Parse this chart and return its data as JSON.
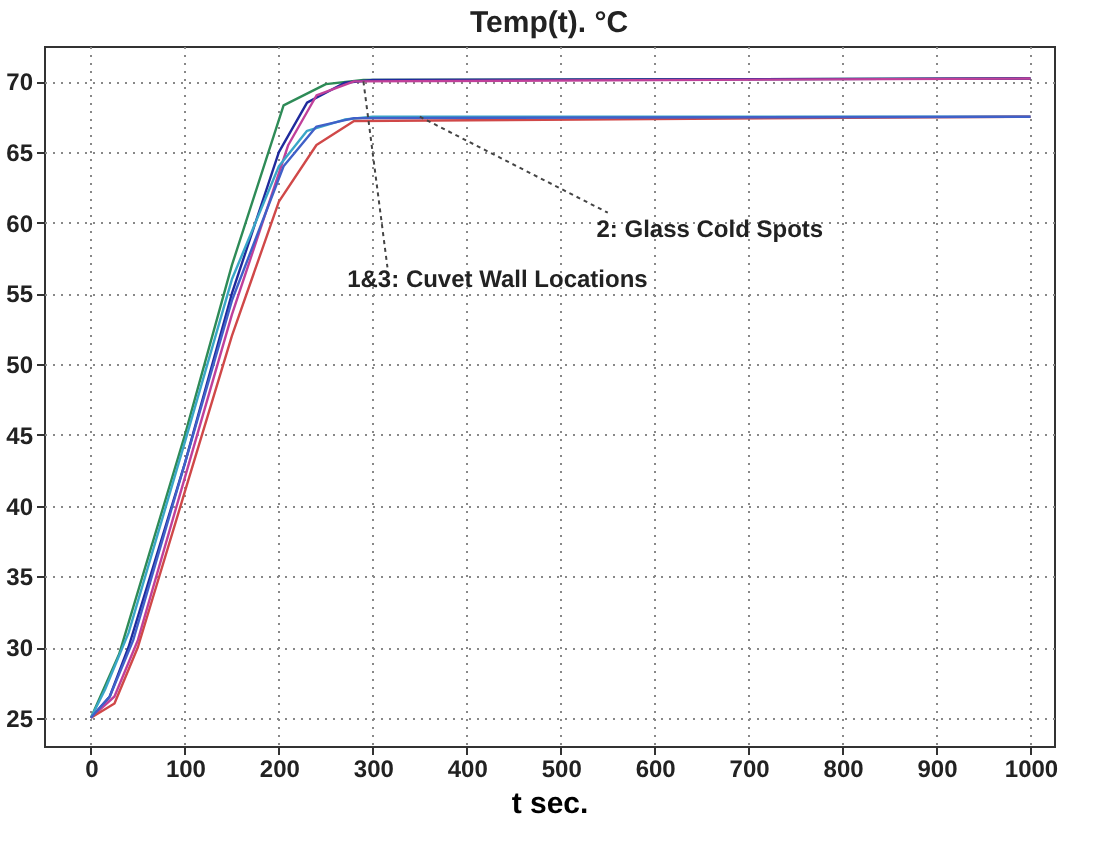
{
  "chart_data": {
    "type": "line",
    "title": "Temp(t). °C",
    "xlabel": "t sec.",
    "xlim": [
      -50,
      1025
    ],
    "ylim": [
      23,
      72.5
    ],
    "xticks": [
      0,
      100,
      200,
      300,
      400,
      500,
      600,
      700,
      800,
      900,
      1000
    ],
    "yticks": [
      25,
      30,
      35,
      40,
      45,
      50,
      55,
      60,
      65,
      70
    ],
    "grid": true,
    "line_style": "solid",
    "marker": "none",
    "series": [
      {
        "color": "#2e8b57",
        "x": [
          0,
          10,
          30,
          100,
          150,
          205,
          250,
          290,
          1000
        ],
        "values": [
          25,
          26.5,
          29.5,
          45,
          57,
          68.3,
          69.8,
          70.1,
          70.2
        ]
      },
      {
        "color": "#1f2a9c",
        "x": [
          0,
          20,
          40,
          100,
          150,
          200,
          230,
          270,
          300,
          1000
        ],
        "values": [
          25,
          26.5,
          30,
          43,
          55,
          65,
          68.5,
          69.9,
          70.1,
          70.2
        ]
      },
      {
        "color": "#c0409a",
        "x": [
          0,
          25,
          50,
          100,
          150,
          210,
          240,
          280,
          1000
        ],
        "values": [
          25,
          26.5,
          30.5,
          42,
          53.5,
          65.5,
          69,
          70,
          70.2
        ]
      },
      {
        "color": "#3aa6c8",
        "x": [
          0,
          15,
          40,
          100,
          150,
          200,
          230,
          270,
          300,
          1000
        ],
        "values": [
          25,
          27,
          31,
          44.5,
          56,
          64,
          66.5,
          67.3,
          67.5,
          67.5
        ]
      },
      {
        "color": "#d04848",
        "x": [
          0,
          25,
          50,
          100,
          150,
          200,
          240,
          280,
          1000
        ],
        "values": [
          25,
          26,
          30,
          41,
          52,
          61.5,
          65.5,
          67.2,
          67.5
        ]
      },
      {
        "color": "#4060c8",
        "x": [
          0,
          20,
          45,
          100,
          150,
          205,
          240,
          280,
          1000
        ],
        "values": [
          25,
          26.5,
          30.5,
          43,
          54.5,
          64,
          66.8,
          67.4,
          67.5
        ]
      }
    ],
    "annotations": [
      {
        "text": "1&3: Cuvet Wall Locations",
        "x": 290,
        "y": 70
      },
      {
        "text": "2: Glass Cold Spots",
        "x": 350,
        "y": 67.5
      }
    ]
  }
}
